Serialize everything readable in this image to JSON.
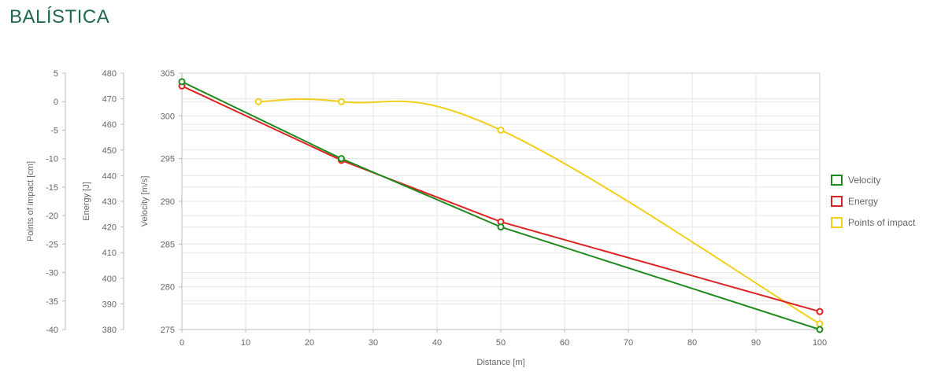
{
  "page": {
    "title": "BALÍSTICA"
  },
  "chart_data": {
    "type": "line",
    "xlabel": "Distance [m]",
    "xlim": [
      0,
      100
    ],
    "xticks": [
      0,
      10,
      20,
      30,
      40,
      50,
      60,
      70,
      80,
      90,
      100
    ],
    "grid": true,
    "legend": "right",
    "axes": {
      "velocity": {
        "label": "Velocity [m/s]",
        "lim": [
          275,
          305
        ],
        "ticks": [
          275,
          280,
          285,
          290,
          295,
          300,
          305
        ]
      },
      "energy": {
        "label": "Energy [J]",
        "lim": [
          380,
          480
        ],
        "ticks": [
          380,
          390,
          400,
          410,
          420,
          430,
          440,
          450,
          460,
          470,
          480
        ]
      },
      "impact": {
        "label": "Points of impact [cm]",
        "lim": [
          -40,
          5
        ],
        "ticks": [
          -40,
          -35,
          -30,
          -25,
          -20,
          -15,
          -10,
          -5,
          0,
          5
        ]
      }
    },
    "series": [
      {
        "name": "Velocity",
        "axis": "velocity",
        "color": "#1e8a1e",
        "curve": "linear",
        "x": [
          0,
          25,
          50,
          100
        ],
        "values": [
          304,
          295,
          287,
          275
        ]
      },
      {
        "name": "Energy",
        "axis": "energy",
        "color": "#dd2222",
        "curve": "linear",
        "x": [
          0,
          25,
          50,
          100
        ],
        "values": [
          475,
          446,
          422,
          387
        ]
      },
      {
        "name": "Points of impact",
        "axis": "impact",
        "color": "#f2cf1a",
        "curve": "smooth",
        "x": [
          12,
          25,
          50,
          100
        ],
        "values": [
          0,
          0,
          -5,
          -39
        ]
      }
    ]
  }
}
